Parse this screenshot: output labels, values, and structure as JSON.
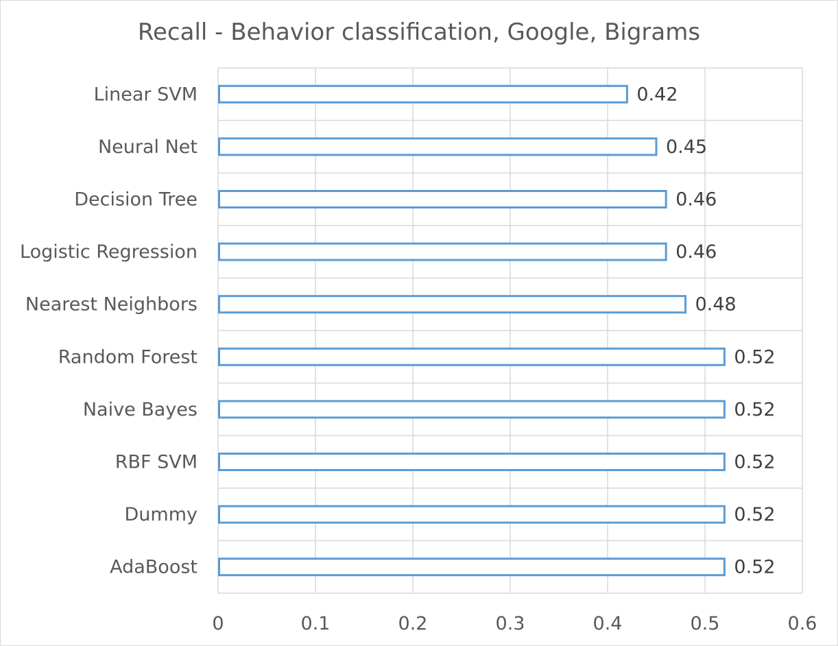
{
  "chart_data": {
    "type": "bar",
    "orientation": "horizontal",
    "title": "Recall - Behavior classification, Google, Bigrams",
    "categories": [
      "Linear SVM",
      "Neural Net",
      "Decision Tree",
      "Logistic Regression",
      "Nearest Neighbors",
      "Random Forest",
      "Naive Bayes",
      "RBF SVM",
      "Dummy",
      "AdaBoost"
    ],
    "values": [
      0.42,
      0.45,
      0.46,
      0.46,
      0.48,
      0.52,
      0.52,
      0.52,
      0.52,
      0.52
    ],
    "value_labels": [
      "0.42",
      "0.45",
      "0.46",
      "0.46",
      "0.48",
      "0.52",
      "0.52",
      "0.52",
      "0.52",
      "0.52"
    ],
    "x_ticks": [
      "0",
      "0.1",
      "0.2",
      "0.3",
      "0.4",
      "0.5",
      "0.6"
    ],
    "xlim": [
      0,
      0.6
    ],
    "xlabel": "",
    "ylabel": "",
    "grid": true,
    "legend": "none",
    "bar_fill": "#ffffff",
    "bar_outline": "#5b9bd5",
    "grid_color": "#d9d9d9"
  }
}
